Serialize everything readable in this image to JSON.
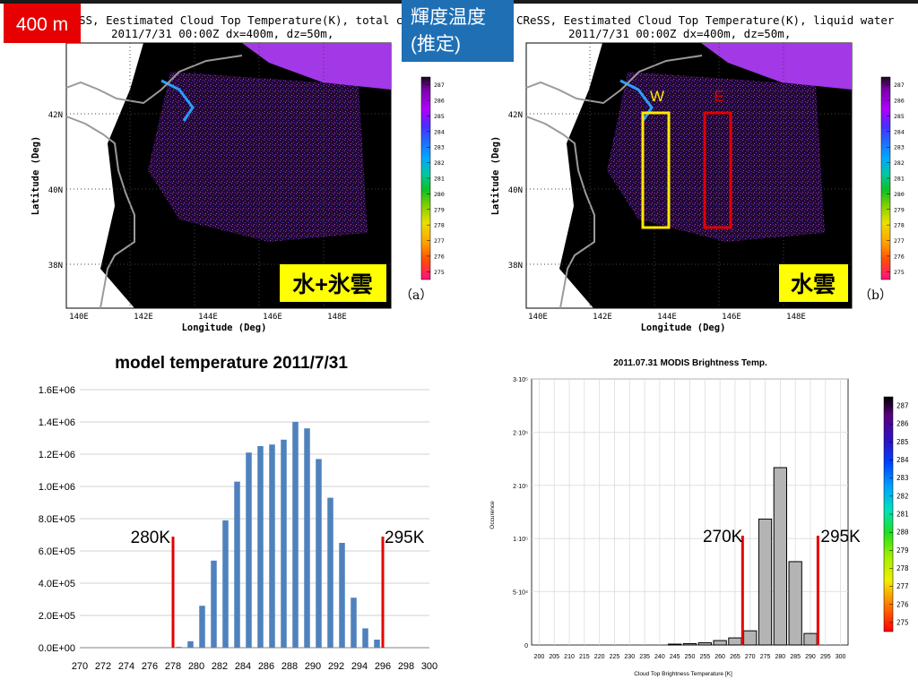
{
  "slide": {
    "resolution_badge": "400 m",
    "brightness_label_line1": "輝度温度",
    "brightness_label_line2": "(推定)",
    "accent_colors": {
      "badge_red": "#e60000",
      "label_blue": "#1f6fb5",
      "threshold_red": "#e60000",
      "box_yellow": "#ffea00"
    }
  },
  "maps": [
    {
      "header_line1": "SS, Eestimated Cloud Top Temperature(K), total cloud",
      "header_line2": "2011/7/31 00:00Z dx=400m, dz=50m,",
      "tag": "水+氷雲",
      "panel_letter": "（a）",
      "x_axis_label": "Longitude (Deg)",
      "y_axis_label": "Latitude (Deg)",
      "x_ticks": [
        "140E",
        "142E",
        "144E",
        "146E",
        "148E"
      ],
      "y_ticks": [
        "42N",
        "40N",
        "38N"
      ],
      "colorbar_ticks": [
        "287",
        "286",
        "285",
        "284",
        "283",
        "282",
        "281",
        "280",
        "279",
        "278",
        "277",
        "276",
        "275"
      ]
    },
    {
      "header_line1": "CReSS, Eestimated Cloud Top Temperature(K), liquid water",
      "header_line2": "2011/7/31 00:00Z dx=400m, dz=50m,",
      "tag": "水雲",
      "panel_letter": "（b）",
      "x_axis_label": "Longitude (Deg)",
      "y_axis_label": "Latitude (Deg)",
      "x_ticks": [
        "140E",
        "142E",
        "144E",
        "146E",
        "148E"
      ],
      "y_ticks": [
        "42N",
        "40N",
        "38N"
      ],
      "box_labels": {
        "west": "W",
        "east": "E"
      },
      "colorbar_ticks": [
        "287",
        "286",
        "285",
        "284",
        "283",
        "282",
        "281",
        "280",
        "279",
        "278",
        "277",
        "276",
        "275"
      ]
    }
  ],
  "chart_data": [
    {
      "type": "bar",
      "title": "model temperature 2011/7/31",
      "xlabel": "",
      "ylabel": "",
      "x_ticks": [
        "270",
        "272",
        "274",
        "276",
        "278",
        "280",
        "282",
        "284",
        "286",
        "288",
        "290",
        "292",
        "294",
        "296",
        "298",
        "300"
      ],
      "y_ticks": [
        "0.0E+00",
        "2.0E+05",
        "4.0E+05",
        "6.0E+05",
        "8.0E+05",
        "1.0E+06",
        "1.2E+06",
        "1.4E+06",
        "1.6E+06"
      ],
      "xlim": [
        270,
        300
      ],
      "ylim": [
        0,
        1600000
      ],
      "x": [
        278.5,
        279.5,
        280.5,
        281.5,
        282.5,
        283.5,
        284.5,
        285.5,
        286.5,
        287.5,
        288.5,
        289.5,
        290.5,
        291.5,
        292.5,
        293.5,
        294.5,
        295.5
      ],
      "values": [
        5000,
        40000,
        260000,
        540000,
        790000,
        1030000,
        1210000,
        1250000,
        1260000,
        1290000,
        1400000,
        1360000,
        1170000,
        930000,
        650000,
        310000,
        120000,
        50000
      ],
      "bar_color": "#4f81bd",
      "threshold_lines": [
        {
          "label": "280K",
          "x": 278.0,
          "color": "#e60000"
        },
        {
          "label": "295K",
          "x": 296.0,
          "color": "#e60000"
        }
      ],
      "grid": true
    },
    {
      "type": "bar",
      "title": "2011.07.31 MODIS Brightness Temp.",
      "xlabel": "Cloud Top Brightness Temperature [K]",
      "ylabel": "Occurence",
      "x_ticks": [
        "200",
        "205",
        "210",
        "215",
        "220",
        "225",
        "230",
        "235",
        "240",
        "245",
        "250",
        "255",
        "260",
        "265",
        "270",
        "275",
        "280",
        "285",
        "290",
        "295",
        "300"
      ],
      "y_ticks": [
        "0",
        "5·10⁴",
        "1·10⁵",
        "2·10⁵",
        "2·10⁵",
        "3·10⁵"
      ],
      "xlim": [
        197.5,
        302.5
      ],
      "ylim": [
        0,
        300000
      ],
      "x": [
        245,
        250,
        255,
        260,
        265,
        270,
        275,
        280,
        285,
        290
      ],
      "values": [
        1000,
        1500,
        2500,
        5000,
        8000,
        16000,
        142000,
        200000,
        94000,
        13000
      ],
      "bar_color": "#b4b4b4",
      "threshold_lines": [
        {
          "label": "270K",
          "x": 267.5,
          "color": "#e60000"
        },
        {
          "label": "295K",
          "x": 292.5,
          "color": "#e60000"
        }
      ],
      "grid": true,
      "colorbar_ticks": [
        "287",
        "286",
        "285",
        "284",
        "283",
        "282",
        "281",
        "280",
        "279",
        "278",
        "277",
        "276",
        "275"
      ]
    }
  ]
}
